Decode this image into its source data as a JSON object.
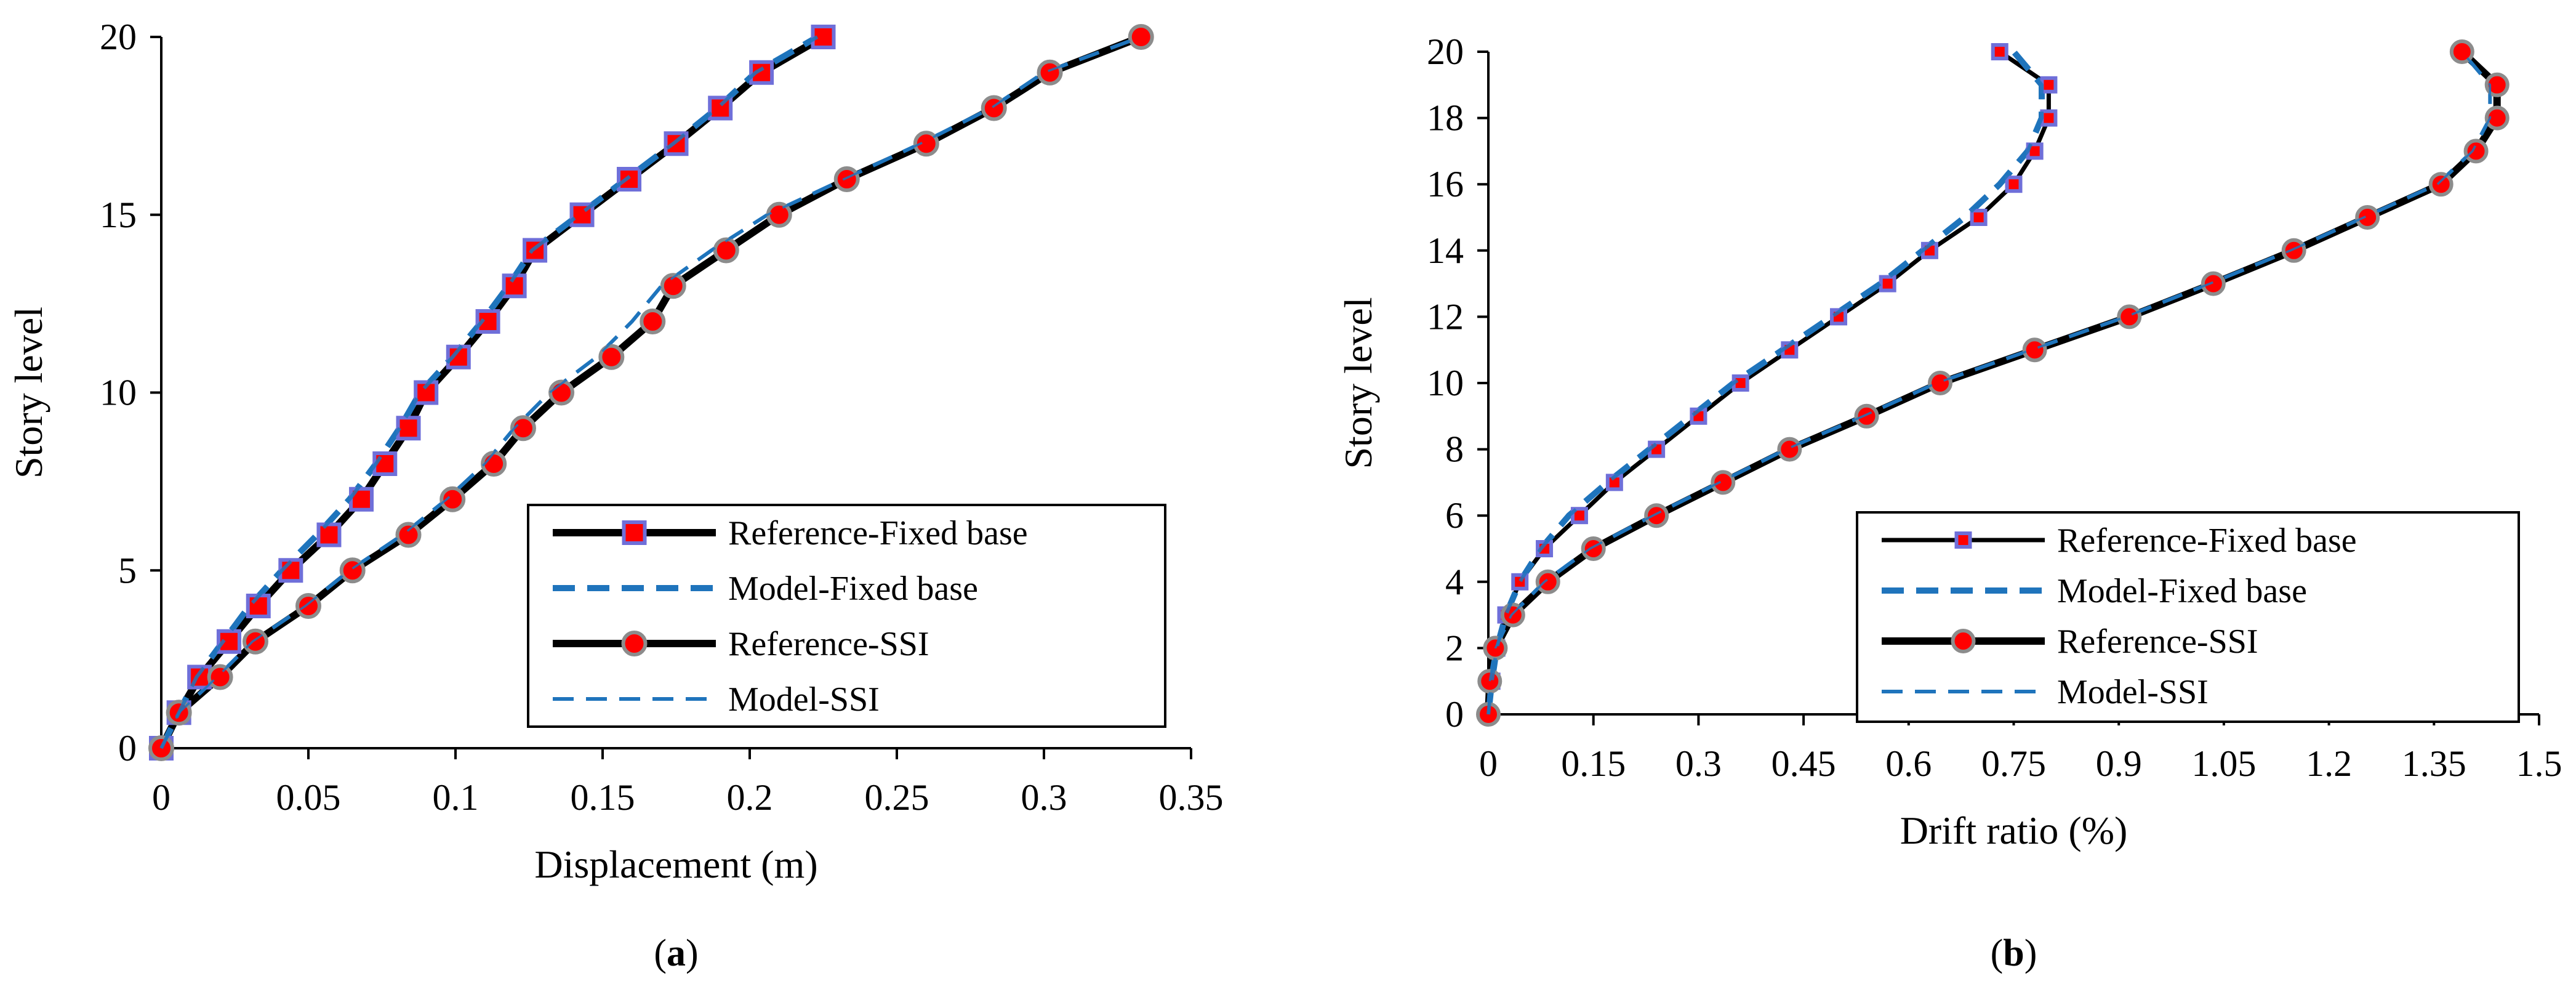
{
  "chart_data": [
    {
      "id": "a",
      "type": "line",
      "caption_open": "(",
      "caption_letter": "a",
      "caption_close": ")",
      "xlabel": "Displacement (m)",
      "ylabel": "Story level",
      "xlim": [
        0,
        0.35
      ],
      "ylim": [
        0,
        20
      ],
      "xticks": [
        0,
        0.05,
        0.1,
        0.15,
        0.2,
        0.25,
        0.3,
        0.35
      ],
      "xtick_labels": [
        "0",
        "0.05",
        "0.1",
        "0.15",
        "0.2",
        "0.25",
        "0.3",
        "0.35"
      ],
      "yticks": [
        0,
        5,
        10,
        15,
        20
      ],
      "ytick_labels": [
        "0",
        "5",
        "10",
        "15",
        "20"
      ],
      "grid": false,
      "legend_position": "lower-right",
      "series": [
        {
          "name": "Reference-Fixed base",
          "style": "ref",
          "marker": "square",
          "x": [
            0,
            0.006,
            0.013,
            0.023,
            0.033,
            0.044,
            0.057,
            0.068,
            0.076,
            0.084,
            0.09,
            0.101,
            0.111,
            0.12,
            0.127,
            0.143,
            0.159,
            0.175,
            0.19,
            0.204,
            0.225
          ],
          "y": [
            0,
            1,
            2,
            3,
            4,
            5,
            6,
            7,
            8,
            9,
            10,
            11,
            12,
            13,
            14,
            15,
            16,
            17,
            18,
            19,
            20
          ]
        },
        {
          "name": "Model-Fixed base",
          "style": "model-thick",
          "marker": "none",
          "x": [
            0,
            0.006,
            0.012,
            0.021,
            0.03,
            0.041,
            0.053,
            0.064,
            0.073,
            0.081,
            0.088,
            0.099,
            0.109,
            0.118,
            0.126,
            0.142,
            0.158,
            0.174,
            0.189,
            0.202,
            0.223
          ],
          "y": [
            0,
            1,
            2,
            3,
            4,
            5,
            6,
            7,
            8,
            9,
            10,
            11,
            12,
            13,
            14,
            15,
            16,
            17,
            18,
            19,
            20
          ]
        },
        {
          "name": "Reference-SSI",
          "style": "ref",
          "marker": "circle",
          "x": [
            0,
            0.006,
            0.02,
            0.032,
            0.05,
            0.065,
            0.084,
            0.099,
            0.113,
            0.123,
            0.136,
            0.153,
            0.167,
            0.174,
            0.192,
            0.21,
            0.233,
            0.26,
            0.283,
            0.302,
            0.333
          ],
          "y": [
            0,
            1,
            2,
            3,
            4,
            5,
            6,
            7,
            8,
            9,
            10,
            11,
            12,
            13,
            14,
            15,
            16,
            17,
            18,
            19,
            20
          ]
        },
        {
          "name": "Model-SSI",
          "style": "model-thin",
          "marker": "none",
          "x": [
            0,
            0.006,
            0.019,
            0.031,
            0.049,
            0.064,
            0.082,
            0.097,
            0.11,
            0.12,
            0.132,
            0.148,
            0.16,
            0.17,
            0.187,
            0.206,
            0.232,
            0.258,
            0.282,
            0.3,
            0.333
          ],
          "y": [
            0,
            1,
            2,
            3,
            4,
            5,
            6,
            7,
            8,
            9,
            10,
            11,
            12,
            13,
            14,
            15,
            16,
            17,
            18,
            19,
            20
          ]
        }
      ]
    },
    {
      "id": "b",
      "type": "line",
      "caption_open": "(",
      "caption_letter": "b",
      "caption_close": ")",
      "xlabel": "Drift ratio (%)",
      "ylabel": "Story level",
      "xlim": [
        0,
        1.5
      ],
      "ylim": [
        0,
        20
      ],
      "xticks": [
        0,
        0.15,
        0.3,
        0.45,
        0.6,
        0.75,
        0.9,
        1.05,
        1.2,
        1.35,
        1.5
      ],
      "xtick_labels": [
        "0",
        "0.15",
        "0.3",
        "0.45",
        "0.6",
        "0.75",
        "0.9",
        "1.05",
        "1.2",
        "1.35",
        "1.5"
      ],
      "yticks": [
        0,
        2,
        4,
        6,
        8,
        10,
        12,
        14,
        16,
        18,
        20
      ],
      "ytick_labels": [
        "0",
        "2",
        "4",
        "6",
        "8",
        "10",
        "12",
        "14",
        "16",
        "18",
        "20"
      ],
      "grid": false,
      "legend_position": "lower-right",
      "series": [
        {
          "name": "Reference-Fixed base",
          "style": "ref-thin",
          "marker": "square",
          "x": [
            0,
            0.005,
            0.012,
            0.025,
            0.045,
            0.08,
            0.13,
            0.18,
            0.24,
            0.3,
            0.36,
            0.43,
            0.5,
            0.57,
            0.63,
            0.7,
            0.75,
            0.78,
            0.8,
            0.8,
            0.73
          ],
          "y": [
            0,
            1,
            2,
            3,
            4,
            5,
            6,
            7,
            8,
            9,
            10,
            11,
            12,
            13,
            14,
            15,
            16,
            17,
            18,
            19,
            20
          ]
        },
        {
          "name": "Model-Fixed base",
          "style": "model-thick",
          "marker": "none",
          "x": [
            0,
            0.005,
            0.012,
            0.025,
            0.045,
            0.075,
            0.115,
            0.17,
            0.23,
            0.29,
            0.35,
            0.42,
            0.49,
            0.56,
            0.62,
            0.68,
            0.73,
            0.77,
            0.79,
            0.79,
            0.75
          ],
          "y": [
            0,
            1,
            2,
            3,
            4,
            5,
            6,
            7,
            8,
            9,
            10,
            11,
            12,
            13,
            14,
            15,
            16,
            17,
            18,
            19,
            20
          ]
        },
        {
          "name": "Reference-SSI",
          "style": "ref",
          "marker": "circle",
          "x": [
            0,
            0.002,
            0.01,
            0.035,
            0.085,
            0.15,
            0.24,
            0.335,
            0.43,
            0.54,
            0.645,
            0.78,
            0.915,
            1.035,
            1.15,
            1.255,
            1.36,
            1.41,
            1.44,
            1.44,
            1.39
          ],
          "y": [
            0,
            1,
            2,
            3,
            4,
            5,
            6,
            7,
            8,
            9,
            10,
            11,
            12,
            13,
            14,
            15,
            16,
            17,
            18,
            19,
            20
          ]
        },
        {
          "name": "Model-SSI",
          "style": "model-thin",
          "marker": "none",
          "x": [
            0,
            0.002,
            0.01,
            0.033,
            0.08,
            0.145,
            0.235,
            0.33,
            0.425,
            0.535,
            0.64,
            0.775,
            0.91,
            1.03,
            1.145,
            1.25,
            1.355,
            1.405,
            1.43,
            1.43,
            1.39
          ],
          "y": [
            0,
            1,
            2,
            3,
            4,
            5,
            6,
            7,
            8,
            9,
            10,
            11,
            12,
            13,
            14,
            15,
            16,
            17,
            18,
            19,
            20
          ]
        }
      ]
    }
  ]
}
